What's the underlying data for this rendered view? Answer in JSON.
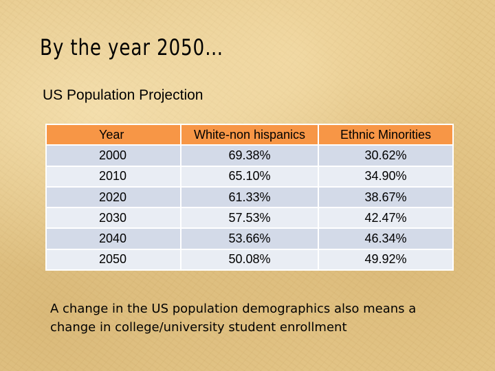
{
  "slide": {
    "title": "By the year 2050…",
    "subtitle": "US Population Projection",
    "note": "A change in the US population demographics also means a change in college/university student enrollment"
  },
  "table": {
    "headers": [
      "Year",
      "White-non hispanics",
      "Ethnic Minorities"
    ],
    "rows": [
      [
        "2000",
        "69.38%",
        "30.62%"
      ],
      [
        "2010",
        "65.10%",
        "34.90%"
      ],
      [
        "2020",
        "61.33%",
        "38.67%"
      ],
      [
        "2030",
        "57.53%",
        "42.47%"
      ],
      [
        "2040",
        "53.66%",
        "46.34%"
      ],
      [
        "2050",
        "50.08%",
        "49.92%"
      ]
    ]
  },
  "colors": {
    "header_fill": "#f79646",
    "row_fill_dark": "#d3dae8",
    "row_fill_light": "#e9edf4",
    "background": "#e6c98c"
  }
}
